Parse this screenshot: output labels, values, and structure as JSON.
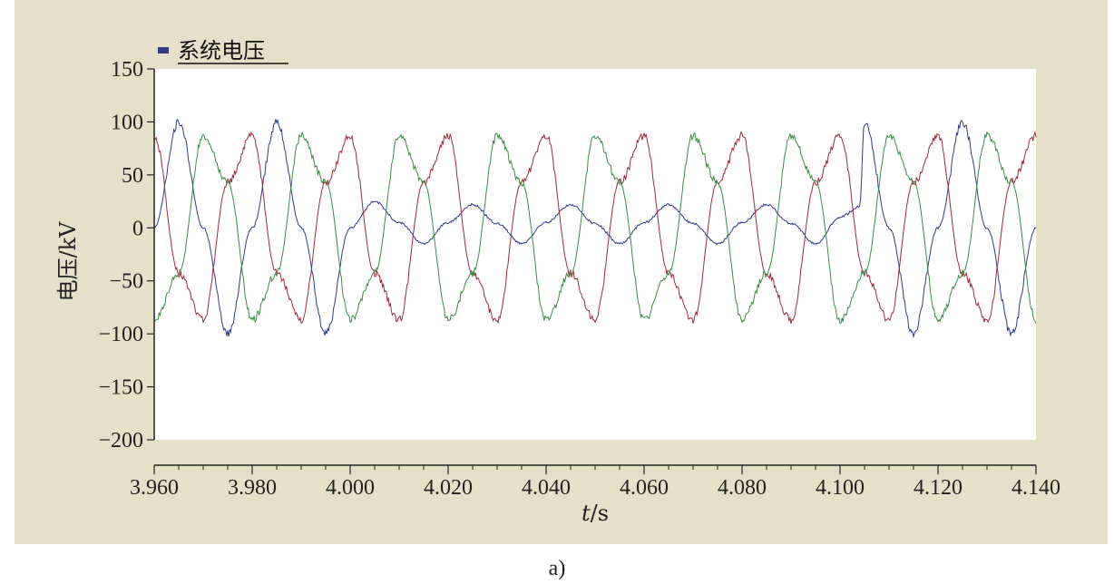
{
  "chart_data": {
    "type": "line",
    "legend": {
      "label": "系统电压",
      "color": "#2e3a86",
      "placement": "top-left"
    },
    "ylabel": "电压/kV",
    "xlabel_italic": "t",
    "xlabel_unit": "/s",
    "xlim": [
      3.96,
      4.14
    ],
    "ylim": [
      -200,
      150
    ],
    "xticks": [
      3.96,
      3.98,
      4.0,
      4.02,
      4.04,
      4.06,
      4.08,
      4.1,
      4.12,
      4.14
    ],
    "xtick_labels": [
      "3.960",
      "3.980",
      "4.000",
      "4.020",
      "4.040",
      "4.060",
      "4.080",
      "4.100",
      "4.120",
      "4.140"
    ],
    "yticks": [
      150,
      100,
      50,
      0,
      -50,
      -100,
      -150,
      -200
    ],
    "ytick_labels": [
      "150",
      "100",
      "50",
      "0",
      "−50",
      "−100",
      "−150",
      "−200"
    ],
    "grid": false,
    "series": [
      {
        "color": "#2e3a86",
        "x": [
          3.96,
          3.965,
          3.97,
          3.975,
          3.98,
          3.985,
          3.99,
          3.995,
          4.0,
          4.005,
          4.01,
          4.015,
          4.02,
          4.025,
          4.03,
          4.035,
          4.04,
          4.045,
          4.05,
          4.055,
          4.06,
          4.065,
          4.07,
          4.075,
          4.08,
          4.085,
          4.09,
          4.095,
          4.1,
          4.104,
          4.105,
          4.11,
          4.115,
          4.12,
          4.125,
          4.13,
          4.135,
          4.14
        ],
        "y": [
          0,
          100,
          0,
          -100,
          0,
          100,
          0,
          -100,
          0,
          25,
          5,
          -15,
          5,
          22,
          4,
          -15,
          5,
          22,
          4,
          -15,
          5,
          22,
          4,
          -15,
          5,
          22,
          4,
          -15,
          10,
          20,
          100,
          0,
          -100,
          0,
          100,
          0,
          -100,
          0
        ]
      },
      {
        "color": "#9a2a3a",
        "x": [
          3.96,
          3.965,
          3.97,
          3.975,
          3.98,
          3.985,
          3.99,
          3.995,
          4.0,
          4.005,
          4.01,
          4.015,
          4.02,
          4.025,
          4.03,
          4.035,
          4.04,
          4.045,
          4.05,
          4.055,
          4.06,
          4.065,
          4.07,
          4.075,
          4.08,
          4.085,
          4.09,
          4.095,
          4.1,
          4.105,
          4.11,
          4.115,
          4.12,
          4.125,
          4.13,
          4.135,
          4.14
        ],
        "y": [
          87,
          -43,
          -87,
          43,
          87,
          -43,
          -87,
          43,
          87,
          -43,
          -87,
          43,
          87,
          -43,
          -87,
          43,
          87,
          -43,
          -87,
          43,
          87,
          -43,
          -87,
          43,
          87,
          -43,
          -87,
          43,
          87,
          -43,
          -87,
          43,
          87,
          -43,
          -87,
          43,
          87
        ]
      },
      {
        "color": "#3c8a46",
        "x": [
          3.96,
          3.965,
          3.97,
          3.975,
          3.98,
          3.985,
          3.99,
          3.995,
          4.0,
          4.005,
          4.01,
          4.015,
          4.02,
          4.025,
          4.03,
          4.035,
          4.04,
          4.045,
          4.05,
          4.055,
          4.06,
          4.065,
          4.07,
          4.075,
          4.08,
          4.085,
          4.09,
          4.095,
          4.1,
          4.105,
          4.11,
          4.115,
          4.12,
          4.125,
          4.13,
          4.135,
          4.14
        ],
        "y": [
          -87,
          -43,
          87,
          43,
          -87,
          -43,
          87,
          43,
          -87,
          -43,
          87,
          43,
          -87,
          -43,
          87,
          43,
          -87,
          -43,
          87,
          43,
          -87,
          -43,
          87,
          43,
          -87,
          -43,
          87,
          43,
          -87,
          -43,
          87,
          43,
          -87,
          -43,
          87,
          43,
          -87
        ]
      }
    ]
  },
  "caption": "a)"
}
